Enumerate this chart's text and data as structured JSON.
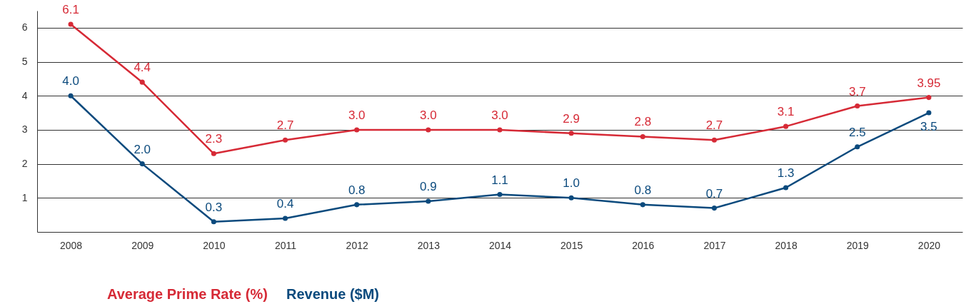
{
  "chart_data": {
    "type": "line",
    "categories": [
      "2008",
      "2009",
      "2010",
      "2011",
      "2012",
      "2013",
      "2014",
      "2015",
      "2016",
      "2017",
      "2018",
      "2019",
      "2020"
    ],
    "series": [
      {
        "name": "Average Prime Rate (%)",
        "color": "#d62a36",
        "values": [
          6.1,
          4.4,
          2.3,
          2.7,
          3.0,
          3.0,
          3.0,
          2.9,
          2.8,
          2.7,
          3.1,
          3.7,
          3.95
        ],
        "value_labels": [
          "6.1",
          "4.4",
          "2.3",
          "2.7",
          "3.0",
          "3.0",
          "3.0",
          "2.9",
          "2.8",
          "2.7",
          "3.1",
          "3.7",
          "3.95"
        ]
      },
      {
        "name": "Revenue ($M)",
        "color": "#0b4a7d",
        "values": [
          4.0,
          2.0,
          0.3,
          0.4,
          0.8,
          0.9,
          1.1,
          1.0,
          0.8,
          0.7,
          1.3,
          2.5,
          3.5
        ],
        "value_labels": [
          "4.0",
          "2.0",
          "0.3",
          "0.4",
          "0.8",
          "0.9",
          "1.1",
          "1.0",
          "0.8",
          "0.7",
          "1.3",
          "2.5",
          "3.5"
        ]
      }
    ],
    "ylim": [
      0,
      6.5
    ],
    "yticks": [
      1,
      2,
      3,
      4,
      5,
      6
    ],
    "grid": "y",
    "legend": "bottom left",
    "marker": "circle",
    "line_style": "solid"
  }
}
